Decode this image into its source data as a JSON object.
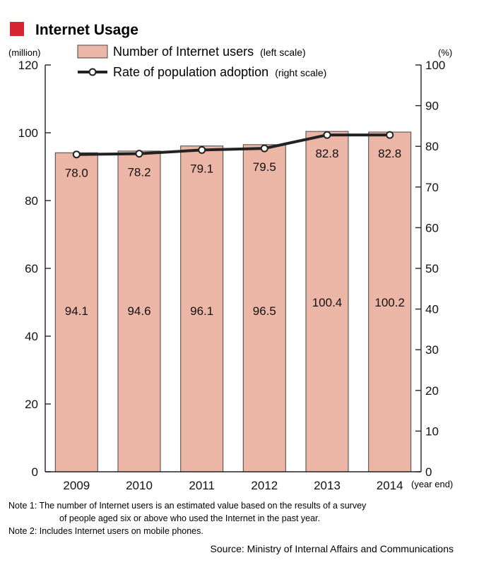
{
  "page": {
    "title": "Internet Usage",
    "accent_color": "#d7242f",
    "notes": [
      "Note 1: The number of Internet users is an estimated value based on the results of a survey",
      "of people aged six or above who used the Internet in the past year.",
      "Note 2: Includes Internet users on mobile phones."
    ],
    "source": "Source: Ministry of Internal Affairs and Communications"
  },
  "chart_data": {
    "type": "bar",
    "categories": [
      "2009",
      "2010",
      "2011",
      "2012",
      "2013",
      "2014"
    ],
    "x_unit_label": "(year end)",
    "left_axis": {
      "unit_label": "(million)",
      "ylim": [
        0,
        120
      ],
      "ticks": [
        0,
        20,
        40,
        60,
        80,
        100,
        120
      ]
    },
    "right_axis": {
      "unit_label": "(%)",
      "ylim": [
        0,
        100
      ],
      "ticks": [
        0,
        10,
        20,
        30,
        40,
        50,
        60,
        70,
        80,
        90,
        100
      ]
    },
    "series": [
      {
        "name": "Number of Internet users",
        "name_suffix": "(left scale)",
        "type": "bar",
        "axis": "left",
        "values": [
          94.1,
          94.6,
          96.1,
          96.5,
          100.4,
          100.2
        ],
        "labels": [
          "94.1",
          "94.6",
          "96.1",
          "96.5",
          "100.4",
          "100.2"
        ],
        "color": "#ecb6a7"
      },
      {
        "name": "Rate of population adoption",
        "name_suffix": "(right scale)",
        "type": "line",
        "axis": "right",
        "values": [
          78.0,
          78.2,
          79.1,
          79.5,
          82.8,
          82.8
        ],
        "labels": [
          "78.0",
          "78.2",
          "79.1",
          "79.5",
          "82.8",
          "82.8"
        ],
        "color": "#222222"
      }
    ],
    "grid": false,
    "legend_position": "top-left"
  }
}
